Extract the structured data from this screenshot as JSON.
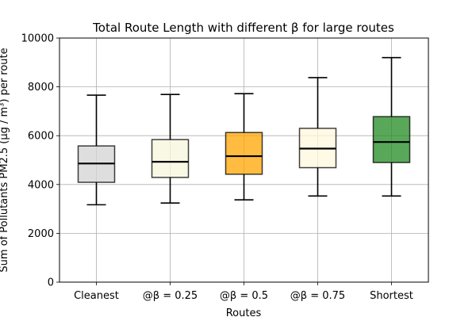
{
  "chart_data": {
    "type": "box",
    "title": "Total Route Length with different β for large routes",
    "xlabel": "Routes",
    "ylabel": "Sum of Pollutants PM2.5 (μg / m³) per route",
    "categories": [
      "Cleanest",
      "@β = 0.25",
      "@β = 0.5",
      "@β = 0.75",
      "Shortest"
    ],
    "ylim": [
      0,
      10000
    ],
    "yticks": [
      0,
      2000,
      4000,
      6000,
      8000,
      10000
    ],
    "grid": true,
    "boxes": [
      {
        "whisker_low": 3170,
        "q1": 4090,
        "median": 4860,
        "q3": 5580,
        "whisker_high": 7660,
        "color": "#d3d3d3"
      },
      {
        "whisker_low": 3240,
        "q1": 4290,
        "median": 4930,
        "q3": 5840,
        "whisker_high": 7690,
        "color": "#f5f5dc"
      },
      {
        "whisker_low": 3370,
        "q1": 4420,
        "median": 5160,
        "q3": 6130,
        "whisker_high": 7720,
        "color": "#ffa500"
      },
      {
        "whisker_low": 3530,
        "q1": 4690,
        "median": 5470,
        "q3": 6300,
        "whisker_high": 8380,
        "color": "#fff8dc"
      },
      {
        "whisker_low": 3530,
        "q1": 4900,
        "median": 5740,
        "q3": 6780,
        "whisker_high": 9200,
        "color": "#228b22"
      }
    ]
  }
}
